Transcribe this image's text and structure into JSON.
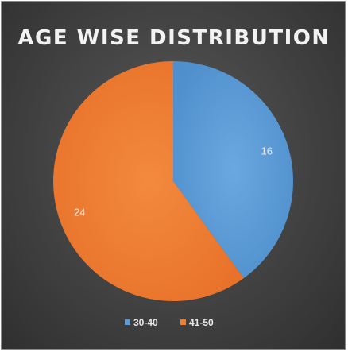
{
  "chart_data": {
    "type": "pie",
    "title": "AGE WISE DISTRIBUTION",
    "categories": [
      "30-40",
      "41-50"
    ],
    "values": [
      16,
      24
    ],
    "data_labels": [
      "16",
      "24"
    ],
    "colors": [
      "#5b9bd5",
      "#ed7d31"
    ],
    "legend": {
      "position": "bottom",
      "entries": [
        "30-40",
        "41-50"
      ]
    }
  }
}
